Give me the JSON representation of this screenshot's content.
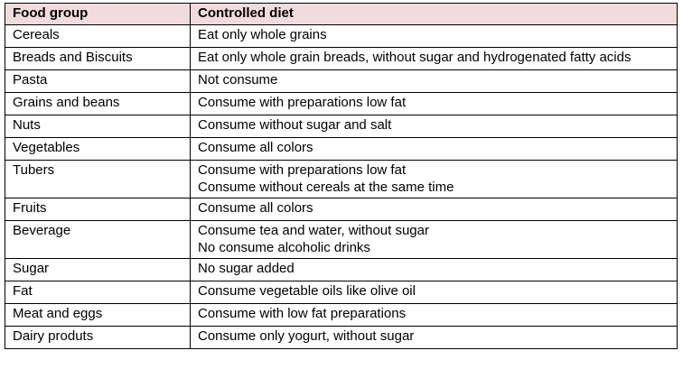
{
  "table": {
    "header": [
      "Food group",
      "Controlled diet"
    ],
    "rows": [
      [
        "Cereals",
        [
          "Eat only whole grains"
        ]
      ],
      [
        "Breads and Biscuits",
        [
          "Eat only whole grain breads, without sugar and hydrogenated fatty acids"
        ]
      ],
      [
        "Pasta",
        [
          "Not consume"
        ]
      ],
      [
        "Grains and beans",
        [
          "Consume with preparations low fat"
        ]
      ],
      [
        "Nuts",
        [
          "Consume without sugar and salt"
        ]
      ],
      [
        "Vegetables",
        [
          "Consume all colors"
        ]
      ],
      [
        "Tubers",
        [
          "Consume with preparations low fat",
          "Consume without cereals at the same time"
        ]
      ],
      [
        "Fruits",
        [
          "Consume all colors"
        ]
      ],
      [
        "Beverage",
        [
          "Consume tea and water, without sugar",
          "No consume alcoholic drinks"
        ]
      ],
      [
        "Sugar",
        [
          "No sugar added"
        ]
      ],
      [
        "Fat",
        [
          "Consume vegetable oils like olive oil"
        ]
      ],
      [
        "Meat and eggs",
        [
          "Consume with low fat preparations"
        ]
      ],
      [
        "Dairy produts",
        [
          "Consume only yogurt, without sugar"
        ]
      ]
    ]
  }
}
